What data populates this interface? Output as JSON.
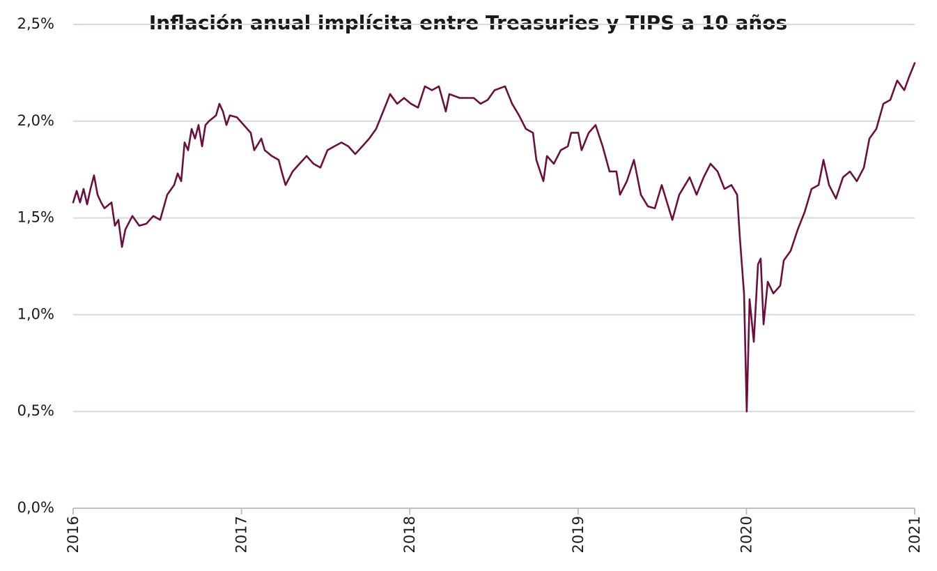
{
  "chart_data": {
    "type": "line",
    "title": "Inflación anual implícita entre Treasuries y TIPS a 10 años",
    "color": "#6b0f3e",
    "grid": true,
    "xlim": [
      2016,
      2021
    ],
    "xticks": [
      2016,
      2017,
      2018,
      2019,
      2020,
      2021
    ],
    "ylim": [
      0,
      2.5
    ],
    "yticks": [
      {
        "value": 0,
        "label": "0,0%"
      },
      {
        "value": 0.5,
        "label": "0,5%"
      },
      {
        "value": 1.0,
        "label": "1,0%"
      },
      {
        "value": 1.5,
        "label": "1,5%"
      },
      {
        "value": 2.0,
        "label": "2,0%"
      },
      {
        "value": 2.5,
        "label": "2,5%"
      }
    ],
    "x": [
      2016.0,
      2016.021,
      2016.041,
      2016.062,
      2016.083,
      2016.103,
      2016.124,
      2016.145,
      2016.166,
      2016.186,
      2016.228,
      2016.248,
      2016.269,
      2016.29,
      2016.31,
      2016.352,
      2016.393,
      2016.435,
      2016.476,
      2016.517,
      2016.559,
      2016.6,
      2016.621,
      2016.642,
      2016.662,
      2016.683,
      2016.704,
      2016.724,
      2016.745,
      2016.766,
      2016.786,
      2016.807,
      2016.849,
      2016.869,
      2016.89,
      2016.911,
      2016.931,
      2016.973,
      2017.014,
      2017.055,
      2017.076,
      2017.118,
      2017.138,
      2017.18,
      2017.221,
      2017.242,
      2017.262,
      2017.304,
      2017.345,
      2017.387,
      2017.428,
      2017.469,
      2017.511,
      2017.552,
      2017.594,
      2017.635,
      2017.676,
      2017.718,
      2017.759,
      2017.8,
      2017.842,
      2017.883,
      2017.925,
      2017.966,
      2018.007,
      2018.049,
      2018.09,
      2018.132,
      2018.173,
      2018.214,
      2018.235,
      2018.297,
      2018.38,
      2018.421,
      2018.463,
      2018.504,
      2018.566,
      2018.608,
      2018.649,
      2018.69,
      2018.732,
      2018.752,
      2018.794,
      2018.815,
      2018.856,
      2018.897,
      2018.939,
      2018.959,
      2019.001,
      2019.021,
      2019.063,
      2019.104,
      2019.146,
      2019.187,
      2019.228,
      2019.249,
      2019.29,
      2019.332,
      2019.373,
      2019.415,
      2019.456,
      2019.497,
      2019.539,
      2019.56,
      2019.601,
      2019.663,
      2019.704,
      2019.746,
      2019.787,
      2019.829,
      2019.87,
      2019.911,
      2019.945,
      2019.961,
      2019.986,
      2020.002,
      2020.019,
      2020.044,
      2020.069,
      2020.085,
      2020.102,
      2020.127,
      2020.16,
      2020.201,
      2020.222,
      2020.263,
      2020.305,
      2020.346,
      2020.387,
      2020.429,
      2020.458,
      2020.491,
      2020.532,
      2020.574,
      2020.615,
      2020.656,
      2020.698,
      2020.731,
      2020.772,
      2020.814,
      2020.855,
      2020.896,
      2020.938,
      2020.967,
      2021.0
    ],
    "values": [
      1.58,
      1.64,
      1.58,
      1.65,
      1.57,
      1.65,
      1.72,
      1.62,
      1.58,
      1.55,
      1.58,
      1.46,
      1.49,
      1.35,
      1.44,
      1.51,
      1.46,
      1.47,
      1.51,
      1.49,
      1.62,
      1.67,
      1.73,
      1.69,
      1.89,
      1.85,
      1.96,
      1.91,
      1.98,
      1.87,
      1.98,
      2.0,
      2.03,
      2.09,
      2.05,
      1.98,
      2.03,
      2.02,
      1.98,
      1.94,
      1.85,
      1.91,
      1.85,
      1.82,
      1.8,
      1.73,
      1.67,
      1.74,
      1.78,
      1.82,
      1.78,
      1.76,
      1.85,
      1.87,
      1.89,
      1.87,
      1.83,
      1.87,
      1.91,
      1.96,
      2.05,
      2.14,
      2.09,
      2.12,
      2.09,
      2.07,
      2.18,
      2.16,
      2.18,
      2.05,
      2.14,
      2.12,
      2.12,
      2.09,
      2.11,
      2.16,
      2.18,
      2.09,
      2.03,
      1.96,
      1.94,
      1.8,
      1.69,
      1.82,
      1.78,
      1.85,
      1.87,
      1.94,
      1.94,
      1.85,
      1.94,
      1.98,
      1.87,
      1.74,
      1.74,
      1.62,
      1.69,
      1.8,
      1.62,
      1.56,
      1.55,
      1.67,
      1.55,
      1.49,
      1.62,
      1.71,
      1.62,
      1.71,
      1.78,
      1.74,
      1.65,
      1.67,
      1.62,
      1.4,
      1.11,
      0.5,
      1.08,
      0.86,
      1.26,
      1.29,
      0.95,
      1.17,
      1.11,
      1.15,
      1.28,
      1.33,
      1.44,
      1.53,
      1.65,
      1.67,
      1.8,
      1.67,
      1.6,
      1.71,
      1.74,
      1.69,
      1.76,
      1.91,
      1.96,
      2.09,
      2.11,
      2.21,
      2.16,
      2.23,
      2.3
    ]
  }
}
